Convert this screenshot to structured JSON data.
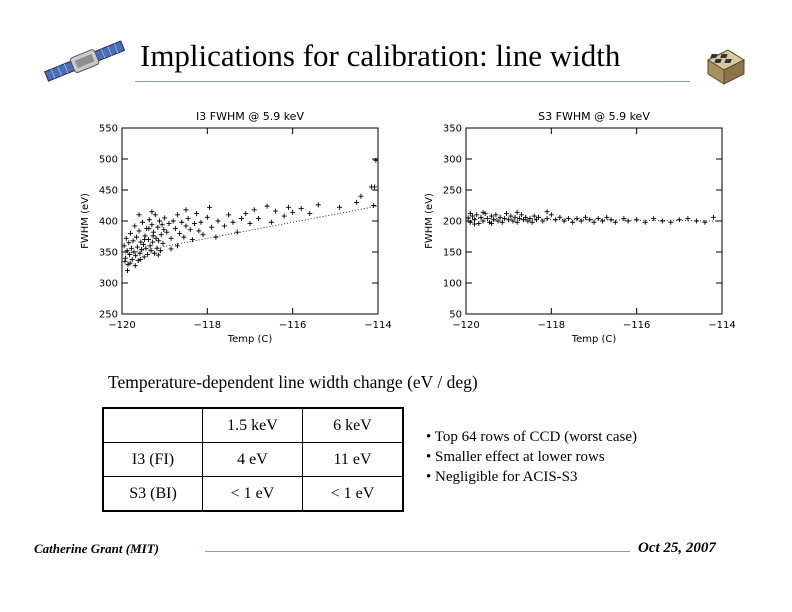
{
  "slide": {
    "title": "Implications for calibration: line width",
    "caption": "Temperature-dependent line width change (eV / deg)",
    "bullets": [
      "• Top 64 rows of CCD (worst case)",
      "• Smaller effect at lower rows",
      "• Negligible for ACIS-S3"
    ],
    "icons": {
      "left": "satellite-icon",
      "right": "ccd-instrument-icon"
    }
  },
  "table": {
    "headers": [
      "",
      "1.5 keV",
      "6 keV"
    ],
    "rows": [
      [
        "I3 (FI)",
        "4 eV",
        "11 eV"
      ],
      [
        "S3 (BI)",
        "< 1 eV",
        "< 1 eV"
      ]
    ]
  },
  "footer": {
    "author": "Catherine Grant (MIT)",
    "date": "Oct 25, 2007"
  },
  "chart_data": [
    {
      "type": "scatter",
      "title": "I3 FWHM @ 5.9 keV",
      "xlabel": "Temp (C)",
      "ylabel": "FWHM (eV)",
      "xlim": [
        -120,
        -114
      ],
      "ylim": [
        250,
        550
      ],
      "xticks": [
        -120,
        -118,
        -116,
        -114
      ],
      "yticks": [
        250,
        300,
        350,
        400,
        450,
        500,
        550
      ],
      "trend": {
        "style": "dotted",
        "x": [
          -120,
          -114
        ],
        "y": [
          346,
          424
        ]
      },
      "points": [
        [
          -119.95,
          360
        ],
        [
          -119.92,
          340
        ],
        [
          -119.9,
          372
        ],
        [
          -119.88,
          352
        ],
        [
          -119.86,
          330
        ],
        [
          -119.84,
          365
        ],
        [
          -119.82,
          346
        ],
        [
          -119.8,
          380
        ],
        [
          -119.78,
          356
        ],
        [
          -119.76,
          338
        ],
        [
          -119.74,
          368
        ],
        [
          -119.72,
          350
        ],
        [
          -119.7,
          392
        ],
        [
          -119.68,
          344
        ],
        [
          -119.66,
          374
        ],
        [
          -119.64,
          358
        ],
        [
          -119.62,
          336
        ],
        [
          -119.6,
          384
        ],
        [
          -119.58,
          348
        ],
        [
          -119.56,
          366
        ],
        [
          -119.54,
          354
        ],
        [
          -119.52,
          398
        ],
        [
          -119.5,
          362
        ],
        [
          -119.48,
          342
        ],
        [
          -119.46,
          376
        ],
        [
          -119.44,
          356
        ],
        [
          -119.42,
          388
        ],
        [
          -119.4,
          346
        ],
        [
          -119.38,
          370
        ],
        [
          -119.36,
          402
        ],
        [
          -119.34,
          360
        ],
        [
          -119.32,
          352
        ],
        [
          -119.3,
          394
        ],
        [
          -119.28,
          366
        ],
        [
          -119.26,
          382
        ],
        [
          -119.24,
          348
        ],
        [
          -119.22,
          410
        ],
        [
          -119.2,
          372
        ],
        [
          -119.18,
          356
        ],
        [
          -119.16,
          390
        ],
        [
          -119.14,
          368
        ],
        [
          -119.12,
          400
        ],
        [
          -119.1,
          352
        ],
        [
          -119.08,
          378
        ],
        [
          -119.06,
          394
        ],
        [
          -119.04,
          364
        ],
        [
          -119.02,
          386
        ],
        [
          -119,
          405
        ],
        [
          -119.93,
          335
        ],
        [
          -119.87,
          320
        ],
        [
          -119.81,
          332
        ],
        [
          -119.69,
          328
        ],
        [
          -119.57,
          338
        ],
        [
          -119.47,
          370
        ],
        [
          -119.37,
          388
        ],
        [
          -119.27,
          376
        ],
        [
          -118.95,
          382
        ],
        [
          -118.9,
          396
        ],
        [
          -118.85,
          372
        ],
        [
          -118.8,
          400
        ],
        [
          -118.75,
          388
        ],
        [
          -118.7,
          410
        ],
        [
          -118.65,
          380
        ],
        [
          -118.6,
          398
        ],
        [
          -118.55,
          374
        ],
        [
          -118.5,
          392
        ],
        [
          -118.45,
          404
        ],
        [
          -118.4,
          386
        ],
        [
          -118.35,
          370
        ],
        [
          -118.3,
          396
        ],
        [
          -118.25,
          412
        ],
        [
          -118.2,
          384
        ],
        [
          -118.15,
          398
        ],
        [
          -118.1,
          378
        ],
        [
          -118,
          406
        ],
        [
          -117.9,
          390
        ],
        [
          -117.8,
          374
        ],
        [
          -117.75,
          400
        ],
        [
          -117.6,
          392
        ],
        [
          -117.5,
          410
        ],
        [
          -117.4,
          398
        ],
        [
          -117.3,
          382
        ],
        [
          -117.2,
          404
        ],
        [
          -117.1,
          412
        ],
        [
          -117,
          396
        ],
        [
          -116.9,
          418
        ],
        [
          -116.8,
          404
        ],
        [
          -116.6,
          424
        ],
        [
          -116.5,
          398
        ],
        [
          -116.4,
          416
        ],
        [
          -116.2,
          408
        ],
        [
          -116.1,
          422
        ],
        [
          -116,
          414
        ],
        [
          -115.8,
          420
        ],
        [
          -115.6,
          412
        ],
        [
          -115.4,
          426
        ],
        [
          -114.9,
          422
        ],
        [
          -114.5,
          430
        ],
        [
          -114.4,
          440
        ],
        [
          -114.15,
          455
        ],
        [
          -114.1,
          425
        ],
        [
          -114.05,
          498
        ],
        [
          -114.08,
          455
        ],
        [
          -118.7,
          360
        ],
        [
          -119.15,
          345
        ],
        [
          -118.85,
          355
        ],
        [
          -119.6,
          410
        ],
        [
          -119.3,
          415
        ],
        [
          -118.5,
          418
        ],
        [
          -117.95,
          422
        ]
      ]
    },
    {
      "type": "scatter",
      "title": "S3 FWHM @ 5.9 keV",
      "xlabel": "Temp (C)",
      "ylabel": "FWHM (eV)",
      "xlim": [
        -120,
        -114
      ],
      "ylim": [
        50,
        350
      ],
      "xticks": [
        -120,
        -118,
        -116,
        -114
      ],
      "yticks": [
        50,
        100,
        150,
        200,
        250,
        300,
        350
      ],
      "trend": {
        "style": "dotted",
        "x": [
          -120,
          -114
        ],
        "y": [
          204,
          200
        ]
      },
      "points": [
        [
          -119.95,
          205
        ],
        [
          -119.9,
          198
        ],
        [
          -119.85,
          208
        ],
        [
          -119.8,
          202
        ],
        [
          -119.75,
          210
        ],
        [
          -119.7,
          196
        ],
        [
          -119.65,
          206
        ],
        [
          -119.6,
          200
        ],
        [
          -119.55,
          212
        ],
        [
          -119.5,
          204
        ],
        [
          -119.45,
          198
        ],
        [
          -119.4,
          208
        ],
        [
          -119.35,
          202
        ],
        [
          -119.3,
          210
        ],
        [
          -119.25,
          200
        ],
        [
          -119.2,
          206
        ],
        [
          -119.15,
          198
        ],
        [
          -119.1,
          204
        ],
        [
          -119.05,
          212
        ],
        [
          -119,
          202
        ],
        [
          -118.95,
          208
        ],
        [
          -118.9,
          200
        ],
        [
          -118.85,
          206
        ],
        [
          -118.8,
          198
        ],
        [
          -118.75,
          204
        ],
        [
          -118.7,
          210
        ],
        [
          -118.65,
          202
        ],
        [
          -118.6,
          206
        ],
        [
          -118.55,
          200
        ],
        [
          -118.5,
          204
        ],
        [
          -118.45,
          198
        ],
        [
          -118.4,
          208
        ],
        [
          -118.35,
          202
        ],
        [
          -118.3,
          206
        ],
        [
          -118.2,
          200
        ],
        [
          -118.1,
          204
        ],
        [
          -118,
          210
        ],
        [
          -117.9,
          202
        ],
        [
          -117.8,
          206
        ],
        [
          -117.7,
          200
        ],
        [
          -117.6,
          204
        ],
        [
          -117.5,
          198
        ],
        [
          -117.4,
          204
        ],
        [
          -117.3,
          200
        ],
        [
          -117.2,
          206
        ],
        [
          -117.1,
          202
        ],
        [
          -117,
          198
        ],
        [
          -116.9,
          204
        ],
        [
          -116.8,
          200
        ],
        [
          -116.7,
          206
        ],
        [
          -116.6,
          202
        ],
        [
          -116.5,
          198
        ],
        [
          -116.3,
          204
        ],
        [
          -116.2,
          200
        ],
        [
          -116,
          202
        ],
        [
          -115.8,
          198
        ],
        [
          -115.6,
          204
        ],
        [
          -115.4,
          200
        ],
        [
          -115.2,
          198
        ],
        [
          -115,
          202
        ],
        [
          -114.8,
          204
        ],
        [
          -114.6,
          200
        ],
        [
          -114.4,
          198
        ],
        [
          -114.2,
          206
        ],
        [
          -119.9,
          212
        ],
        [
          -119.8,
          195
        ],
        [
          -119.6,
          214
        ],
        [
          -119.4,
          196
        ],
        [
          -118.8,
          214
        ],
        [
          -118.1,
          215
        ]
      ]
    }
  ]
}
